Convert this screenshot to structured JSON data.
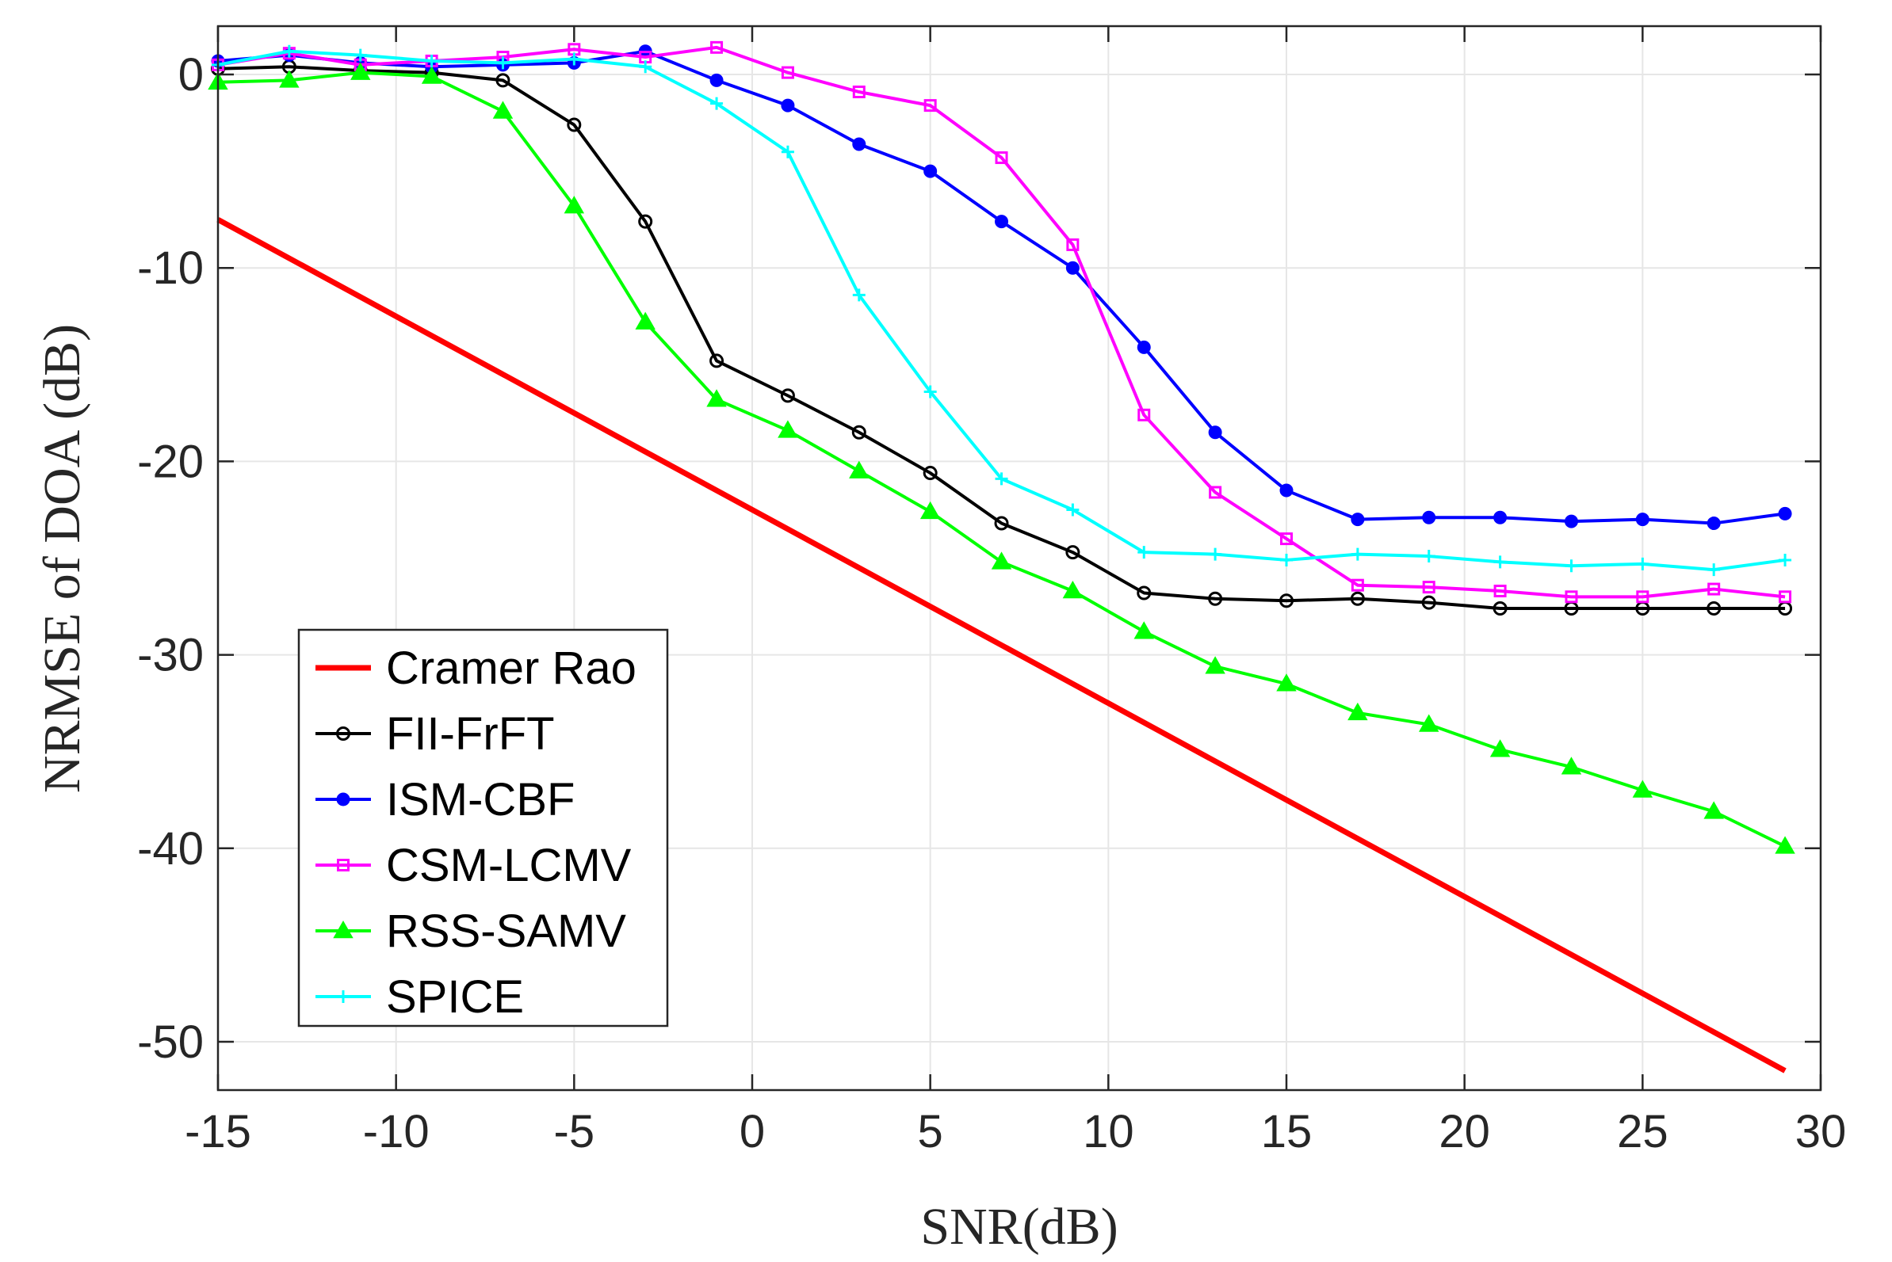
{
  "chart_data": {
    "type": "line",
    "title": "",
    "xlabel": "SNR(dB)",
    "ylabel": "NRMSE of DOA (dB)",
    "xlim": [
      -15,
      30
    ],
    "ylim": [
      -52.5,
      2.5
    ],
    "xticks": [
      -15,
      -10,
      -5,
      0,
      5,
      10,
      15,
      20,
      25,
      30
    ],
    "yticks": [
      0,
      -10,
      -20,
      -30,
      -40,
      -50
    ],
    "grid": true,
    "legend_position": "bottom-left",
    "series": [
      {
        "name": "Cramer Rao",
        "color": "#ff0000",
        "marker": "none",
        "x": [
          -15,
          29
        ],
        "y": [
          -7.5,
          -51.5
        ]
      },
      {
        "name": "FII-FrFT",
        "color": "#000000",
        "marker": "circle",
        "x": [
          -15,
          -13,
          -11,
          -9,
          -7,
          -5,
          -3,
          -1,
          1,
          3,
          5,
          7,
          9,
          11,
          13,
          15,
          17,
          19,
          21,
          23,
          25,
          27,
          29
        ],
        "y": [
          0.3,
          0.4,
          0.2,
          0.1,
          -0.3,
          -2.6,
          -7.6,
          -14.8,
          -16.6,
          -18.5,
          -20.6,
          -23.2,
          -24.7,
          -26.8,
          -27.1,
          -27.2,
          -27.1,
          -27.3,
          -27.6,
          -27.6,
          -27.6,
          -27.6,
          -27.6
        ]
      },
      {
        "name": "ISM-CBF",
        "color": "#0000ff",
        "marker": "filled-circle",
        "x": [
          -15,
          -13,
          -11,
          -9,
          -7,
          -5,
          -3,
          -1,
          1,
          3,
          5,
          7,
          9,
          11,
          13,
          15,
          17,
          19,
          21,
          23,
          25,
          27,
          29
        ],
        "y": [
          0.7,
          1.0,
          0.6,
          0.4,
          0.5,
          0.6,
          1.2,
          -0.3,
          -1.6,
          -3.6,
          -5.0,
          -7.6,
          -10.0,
          -14.1,
          -18.5,
          -21.5,
          -23.0,
          -22.9,
          -22.9,
          -23.1,
          -23.0,
          -23.2,
          -22.7
        ]
      },
      {
        "name": "CSM-LCMV",
        "color": "#ff00ff",
        "marker": "square",
        "x": [
          -15,
          -13,
          -11,
          -9,
          -7,
          -5,
          -3,
          -1,
          1,
          3,
          5,
          7,
          9,
          11,
          13,
          15,
          17,
          19,
          21,
          23,
          25,
          27,
          29
        ],
        "y": [
          0.5,
          1.1,
          0.5,
          0.7,
          0.9,
          1.3,
          0.9,
          1.4,
          0.1,
          -0.9,
          -1.6,
          -4.3,
          -8.8,
          -17.6,
          -21.6,
          -24.0,
          -26.4,
          -26.5,
          -26.7,
          -27.0,
          -27.0,
          -26.6,
          -27.0
        ]
      },
      {
        "name": "RSS-SAMV",
        "color": "#00ff00",
        "marker": "triangle",
        "x": [
          -15,
          -13,
          -11,
          -9,
          -7,
          -5,
          -3,
          -1,
          1,
          3,
          5,
          7,
          9,
          11,
          13,
          15,
          17,
          19,
          21,
          23,
          25,
          27,
          29
        ],
        "y": [
          -0.4,
          -0.3,
          0.1,
          -0.1,
          -1.9,
          -6.8,
          -12.8,
          -16.8,
          -18.4,
          -20.5,
          -22.6,
          -25.2,
          -26.7,
          -28.8,
          -30.6,
          -31.5,
          -33.0,
          -33.6,
          -34.9,
          -35.8,
          -37.0,
          -38.1,
          -39.9
        ]
      },
      {
        "name": "SPICE",
        "color": "#00ffff",
        "marker": "plus",
        "x": [
          -15,
          -13,
          -11,
          -9,
          -7,
          -5,
          -3,
          -1,
          1,
          3,
          5,
          7,
          9,
          11,
          13,
          15,
          17,
          19,
          21,
          23,
          25,
          27,
          29
        ],
        "y": [
          0.5,
          1.2,
          1.0,
          0.7,
          0.6,
          0.8,
          0.4,
          -1.5,
          -4.0,
          -11.4,
          -16.4,
          -20.9,
          -22.5,
          -24.7,
          -24.8,
          -25.1,
          -24.8,
          -24.9,
          -25.2,
          -25.4,
          -25.3,
          -25.6,
          -25.1
        ]
      }
    ]
  }
}
